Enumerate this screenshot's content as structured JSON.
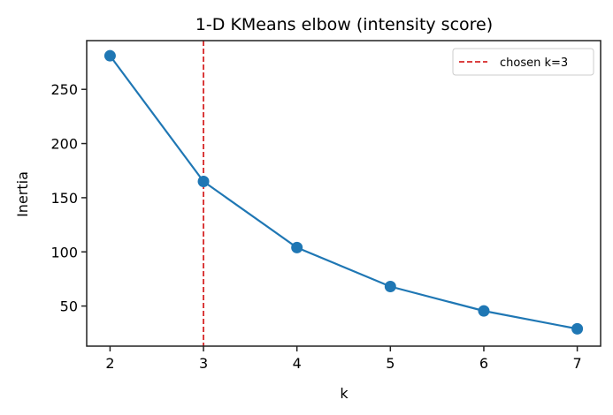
{
  "chart_data": {
    "type": "line",
    "title": "1-D KMeans elbow (intensity score)",
    "xlabel": "k",
    "ylabel": "Inertia",
    "x": [
      2,
      3,
      4,
      5,
      6,
      7
    ],
    "series": [
      {
        "name": "inertia",
        "values": [
          281,
          165,
          104,
          68,
          45.5,
          29
        ],
        "color": "#1f77b4",
        "marker": "circle"
      }
    ],
    "xticks": [
      "2",
      "3",
      "4",
      "5",
      "6",
      "7"
    ],
    "yticks": [
      "50",
      "100",
      "150",
      "200",
      "250"
    ],
    "ytick_values": [
      50,
      100,
      150,
      200,
      250
    ],
    "xlim": [
      1.75,
      7.25
    ],
    "ylim": [
      13,
      295
    ],
    "grid": false,
    "annotations": [
      {
        "type": "vline",
        "x": 3,
        "style": "dashed",
        "color": "#d62728",
        "label": "chosen k=3"
      }
    ],
    "legend": {
      "position": "upper right",
      "entries": [
        "chosen k=3"
      ]
    }
  }
}
